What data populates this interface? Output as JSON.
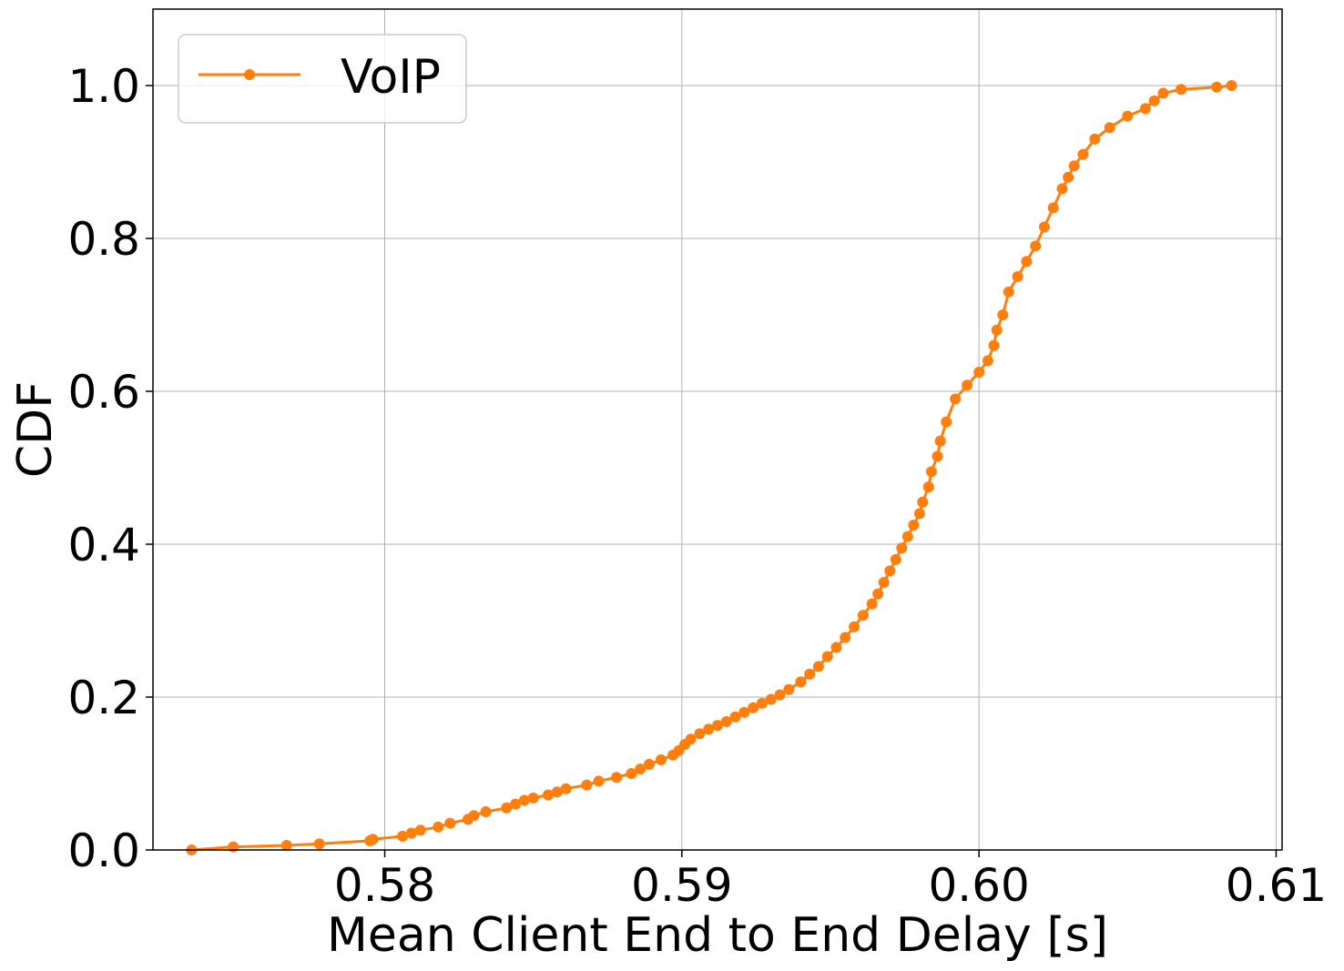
{
  "chart_data": {
    "type": "line",
    "xlabel": "Mean Client End to End Delay [s]",
    "ylabel": "CDF",
    "xlim": [
      0.5722,
      0.6102
    ],
    "ylim": [
      0.0,
      1.1
    ],
    "grid": true,
    "legend_position": "top-left",
    "xticks": [
      {
        "value": 0.58,
        "label": "0.58"
      },
      {
        "value": 0.59,
        "label": "0.59"
      },
      {
        "value": 0.6,
        "label": "0.60"
      },
      {
        "value": 0.61,
        "label": "0.61"
      }
    ],
    "yticks": [
      {
        "value": 0.0,
        "label": "0.0"
      },
      {
        "value": 0.2,
        "label": "0.2"
      },
      {
        "value": 0.4,
        "label": "0.4"
      },
      {
        "value": 0.6,
        "label": "0.6"
      },
      {
        "value": 0.8,
        "label": "0.8"
      },
      {
        "value": 1.0,
        "label": "1.0"
      }
    ],
    "series": [
      {
        "name": "VoIP",
        "color": "#ff7f0e",
        "marker": "circle",
        "x": [
          0.5735,
          0.5749,
          0.5767,
          0.5778,
          0.5795,
          0.5796,
          0.5806,
          0.5809,
          0.5812,
          0.5818,
          0.5822,
          0.5828,
          0.583,
          0.5834,
          0.5841,
          0.5844,
          0.5847,
          0.585,
          0.5855,
          0.5858,
          0.5861,
          0.5868,
          0.5872,
          0.5878,
          0.5883,
          0.5886,
          0.5889,
          0.5893,
          0.5897,
          0.5899,
          0.5901,
          0.5903,
          0.5906,
          0.5909,
          0.5912,
          0.5915,
          0.5918,
          0.5921,
          0.5924,
          0.5927,
          0.593,
          0.5933,
          0.5936,
          0.594,
          0.5943,
          0.5946,
          0.5949,
          0.5952,
          0.5955,
          0.5958,
          0.5961,
          0.5964,
          0.5966,
          0.5968,
          0.597,
          0.5972,
          0.5974,
          0.5976,
          0.5978,
          0.598,
          0.5981,
          0.5983,
          0.5984,
          0.5986,
          0.5987,
          0.5989,
          0.5992,
          0.5996,
          0.6,
          0.6003,
          0.6005,
          0.6006,
          0.6008,
          0.601,
          0.6013,
          0.6016,
          0.6019,
          0.6022,
          0.6025,
          0.6028,
          0.603,
          0.6032,
          0.6035,
          0.6039,
          0.6044,
          0.605,
          0.6056,
          0.6059,
          0.6062,
          0.6068,
          0.608,
          0.6085
        ],
        "y": [
          0.0,
          0.004,
          0.006,
          0.008,
          0.012,
          0.014,
          0.018,
          0.022,
          0.026,
          0.03,
          0.035,
          0.04,
          0.045,
          0.05,
          0.055,
          0.06,
          0.065,
          0.068,
          0.072,
          0.076,
          0.08,
          0.085,
          0.09,
          0.095,
          0.1,
          0.106,
          0.112,
          0.118,
          0.124,
          0.13,
          0.138,
          0.145,
          0.152,
          0.158,
          0.163,
          0.168,
          0.174,
          0.18,
          0.186,
          0.192,
          0.197,
          0.203,
          0.21,
          0.22,
          0.23,
          0.24,
          0.253,
          0.265,
          0.278,
          0.292,
          0.307,
          0.322,
          0.335,
          0.35,
          0.365,
          0.38,
          0.395,
          0.41,
          0.425,
          0.44,
          0.455,
          0.475,
          0.495,
          0.515,
          0.535,
          0.56,
          0.59,
          0.608,
          0.625,
          0.64,
          0.66,
          0.68,
          0.7,
          0.73,
          0.75,
          0.77,
          0.79,
          0.815,
          0.84,
          0.865,
          0.88,
          0.895,
          0.91,
          0.93,
          0.945,
          0.96,
          0.97,
          0.98,
          0.99,
          0.995,
          0.998,
          1.0
        ]
      }
    ]
  }
}
